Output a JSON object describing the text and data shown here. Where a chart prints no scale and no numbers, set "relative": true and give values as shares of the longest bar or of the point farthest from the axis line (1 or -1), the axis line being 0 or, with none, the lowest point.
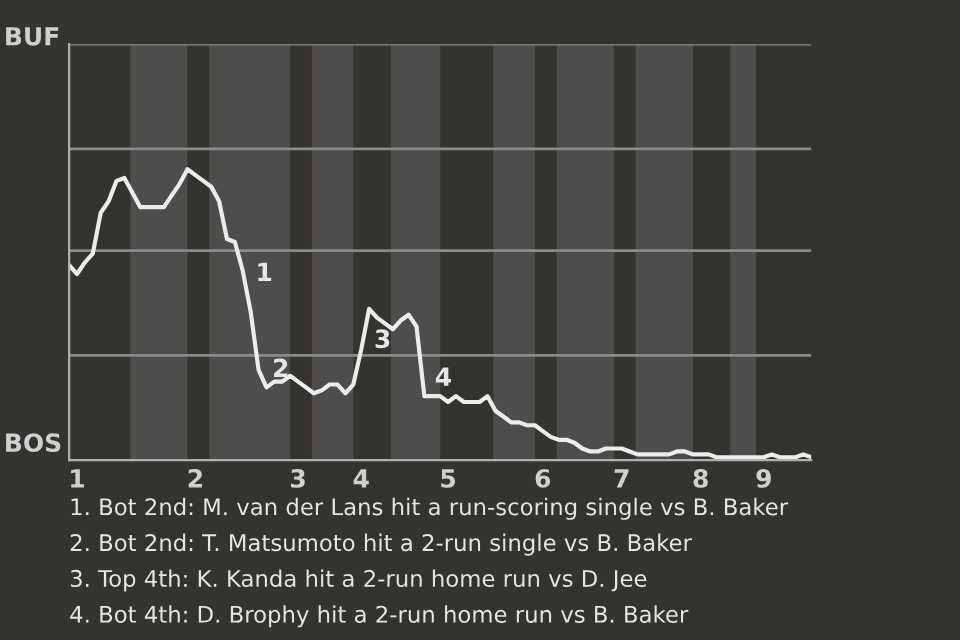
{
  "chart_data": {
    "type": "line",
    "relative": true,
    "categories": [
      null,
      "1",
      null,
      null,
      null,
      null,
      null,
      null,
      null,
      null,
      null,
      null,
      null,
      null,
      null,
      null,
      "2",
      null,
      null,
      null,
      null,
      null,
      null,
      null,
      null,
      null,
      null,
      null,
      null,
      "3",
      null,
      null,
      null,
      null,
      null,
      null,
      null,
      "4",
      null,
      null,
      null,
      null,
      null,
      null,
      null,
      null,
      null,
      null,
      "5",
      null,
      null,
      null,
      null,
      null,
      null,
      null,
      null,
      null,
      null,
      null,
      "6",
      null,
      null,
      null,
      null,
      null,
      null,
      null,
      null,
      null,
      "7",
      null,
      null,
      null,
      null,
      null,
      null,
      null,
      null,
      null,
      "8",
      null,
      null,
      null,
      null,
      null,
      null,
      null,
      "9",
      null,
      null,
      null,
      null,
      null,
      null
    ],
    "series": [
      {
        "color": "#ececec",
        "values": [
          0.67,
          0.64,
          0.68,
          0.71,
          0.85,
          0.89,
          0.96,
          0.97,
          0.92,
          0.87,
          0.87,
          0.87,
          0.87,
          0.91,
          0.95,
          1,
          0.98,
          0.96,
          0.94,
          0.89,
          0.76,
          0.75,
          0.65,
          0.51,
          0.31,
          0.25,
          0.27,
          0.27,
          0.29,
          0.27,
          0.25,
          0.23,
          0.24,
          0.26,
          0.26,
          0.23,
          0.26,
          0.38,
          0.52,
          0.49,
          0.47,
          0.45,
          0.48,
          0.5,
          0.46,
          0.22,
          0.22,
          0.22,
          0.2,
          0.22,
          0.2,
          0.2,
          0.2,
          0.22,
          0.17,
          0.15,
          0.13,
          0.13,
          0.12,
          0.12,
          0.1,
          0.08,
          0.07,
          0.07,
          0.06,
          0.04,
          0.03,
          0.03,
          0.04,
          0.04,
          0.04,
          0.03,
          0.02,
          0.02,
          0.02,
          0.02,
          0.02,
          0.03,
          0.03,
          0.02,
          0.02,
          0.02,
          0.01,
          0.01,
          0.01,
          0.01,
          0.01,
          0.01,
          0.01,
          0.02,
          0.01,
          0.01,
          0.01,
          0.02,
          0.01
        ]
      }
    ],
    "ref_lines": [
      {
        "axis": "y",
        "value": 0.36,
        "color": "#8a8a8a"
      },
      {
        "axis": "y",
        "value": 0.72,
        "color": "#8a8a8a"
      },
      {
        "axis": "y",
        "value": 1.07,
        "color": "#8a8a8a"
      },
      {
        "axis": "y",
        "value": 1.43,
        "color": "#8a8a8a"
      }
    ],
    "annotations": [
      "1",
      "2",
      "3",
      "4",
      "BUF",
      "BOS",
      "1. Bot 2nd: M. van der Lans hit a run-scoring single vs B. Baker",
      "2. Bot 2nd: T. Matsumoto hit a 2-run single vs B. Baker",
      "3. Top 4th: K. Kanda hit a 2-run home run vs D. Jee",
      "4. Bot 4th: D. Brophy hit a 2-run home run vs B. Baker"
    ]
  }
}
